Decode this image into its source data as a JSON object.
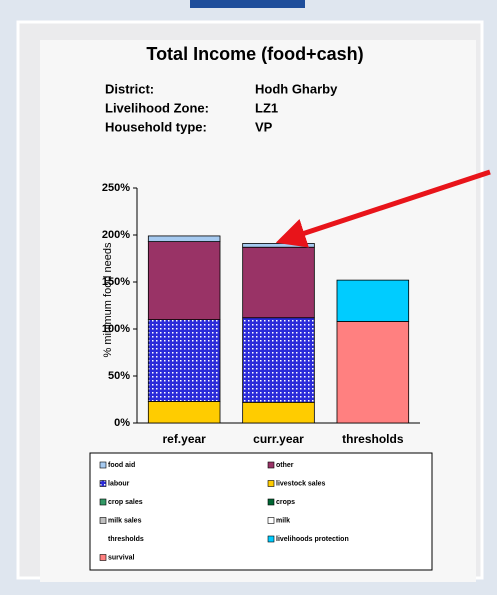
{
  "chart_data": {
    "type": "bar",
    "stacked": true,
    "title": "Total Income (food+cash)",
    "info": [
      [
        "District:",
        "Hodh Gharby"
      ],
      [
        "Livelihood Zone:",
        "LZ1"
      ],
      [
        "Household type:",
        "VP"
      ]
    ],
    "y_label": "% minimum food needs",
    "categories": [
      "ref.year",
      "curr.year",
      "thresholds"
    ],
    "ylim": [
      0,
      250
    ],
    "yticks": [
      {
        "value": 0,
        "label": "0%"
      },
      {
        "value": 50,
        "label": "50%"
      },
      {
        "value": 100,
        "label": "100%"
      },
      {
        "value": 150,
        "label": "150%"
      },
      {
        "value": 200,
        "label": "200%"
      },
      {
        "value": 250,
        "label": "250%"
      }
    ],
    "series": [
      {
        "name": "food aid",
        "color": "#a6caf0",
        "values": [
          6,
          4,
          null
        ]
      },
      {
        "name": "other",
        "color": "#993366",
        "values": [
          83,
          75,
          null
        ]
      },
      {
        "name": "labour",
        "color": "#2b2bd9",
        "pattern": "grid",
        "values": [
          87,
          90,
          null
        ]
      },
      {
        "name": "livestock sales",
        "color": "#ffcc00",
        "values": [
          23,
          22,
          null
        ]
      },
      {
        "name": "crop sales",
        "color": "#339966",
        "values": [
          null,
          null,
          null
        ]
      },
      {
        "name": "crops",
        "color": "#006633",
        "values": [
          null,
          null,
          null
        ]
      },
      {
        "name": "milk sales",
        "color": "#c0c0c0",
        "values": [
          null,
          null,
          null
        ]
      },
      {
        "name": "milk",
        "color": "#ffffff",
        "values": [
          null,
          null,
          null
        ]
      },
      {
        "name": "thresholds",
        "values": [
          null,
          null,
          null
        ]
      },
      {
        "name": "livelihoods protection",
        "color": "#00ccff",
        "values": [
          null,
          null,
          44
        ]
      },
      {
        "name": "survival",
        "color": "#ff8080",
        "values": [
          null,
          null,
          108
        ]
      }
    ]
  }
}
